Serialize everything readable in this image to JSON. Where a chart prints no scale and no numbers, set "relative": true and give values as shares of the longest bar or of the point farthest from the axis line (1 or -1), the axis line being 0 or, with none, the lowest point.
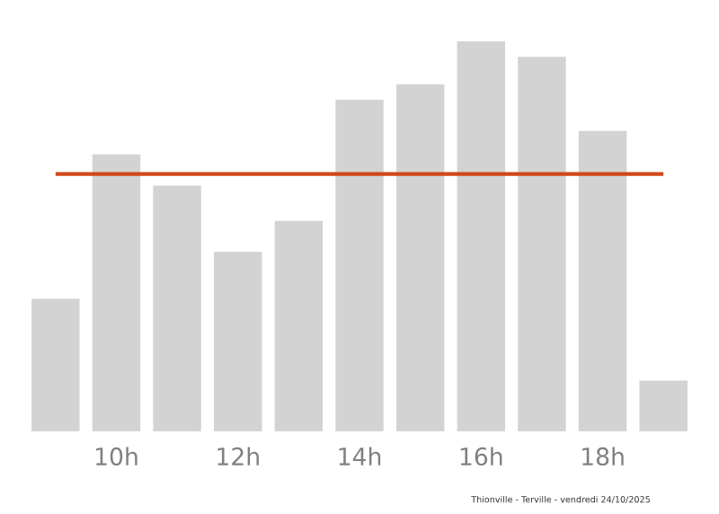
{
  "chart_data": {
    "type": "bar",
    "relative": true,
    "categories": [
      null,
      "10h",
      null,
      "12h",
      null,
      "14h",
      null,
      "16h",
      null,
      "18h",
      null
    ],
    "values": [
      0.34,
      0.71,
      0.63,
      0.46,
      0.54,
      0.85,
      0.89,
      1,
      0.96,
      0.77,
      0.13
    ],
    "color": "#d3d3d3",
    "ref_lines": [
      {
        "axis": "y",
        "value": 0.66,
        "color": "#d0481a"
      }
    ],
    "annotations": [
      "Thionville - Terville - vendredi 24/10/2025"
    ]
  }
}
